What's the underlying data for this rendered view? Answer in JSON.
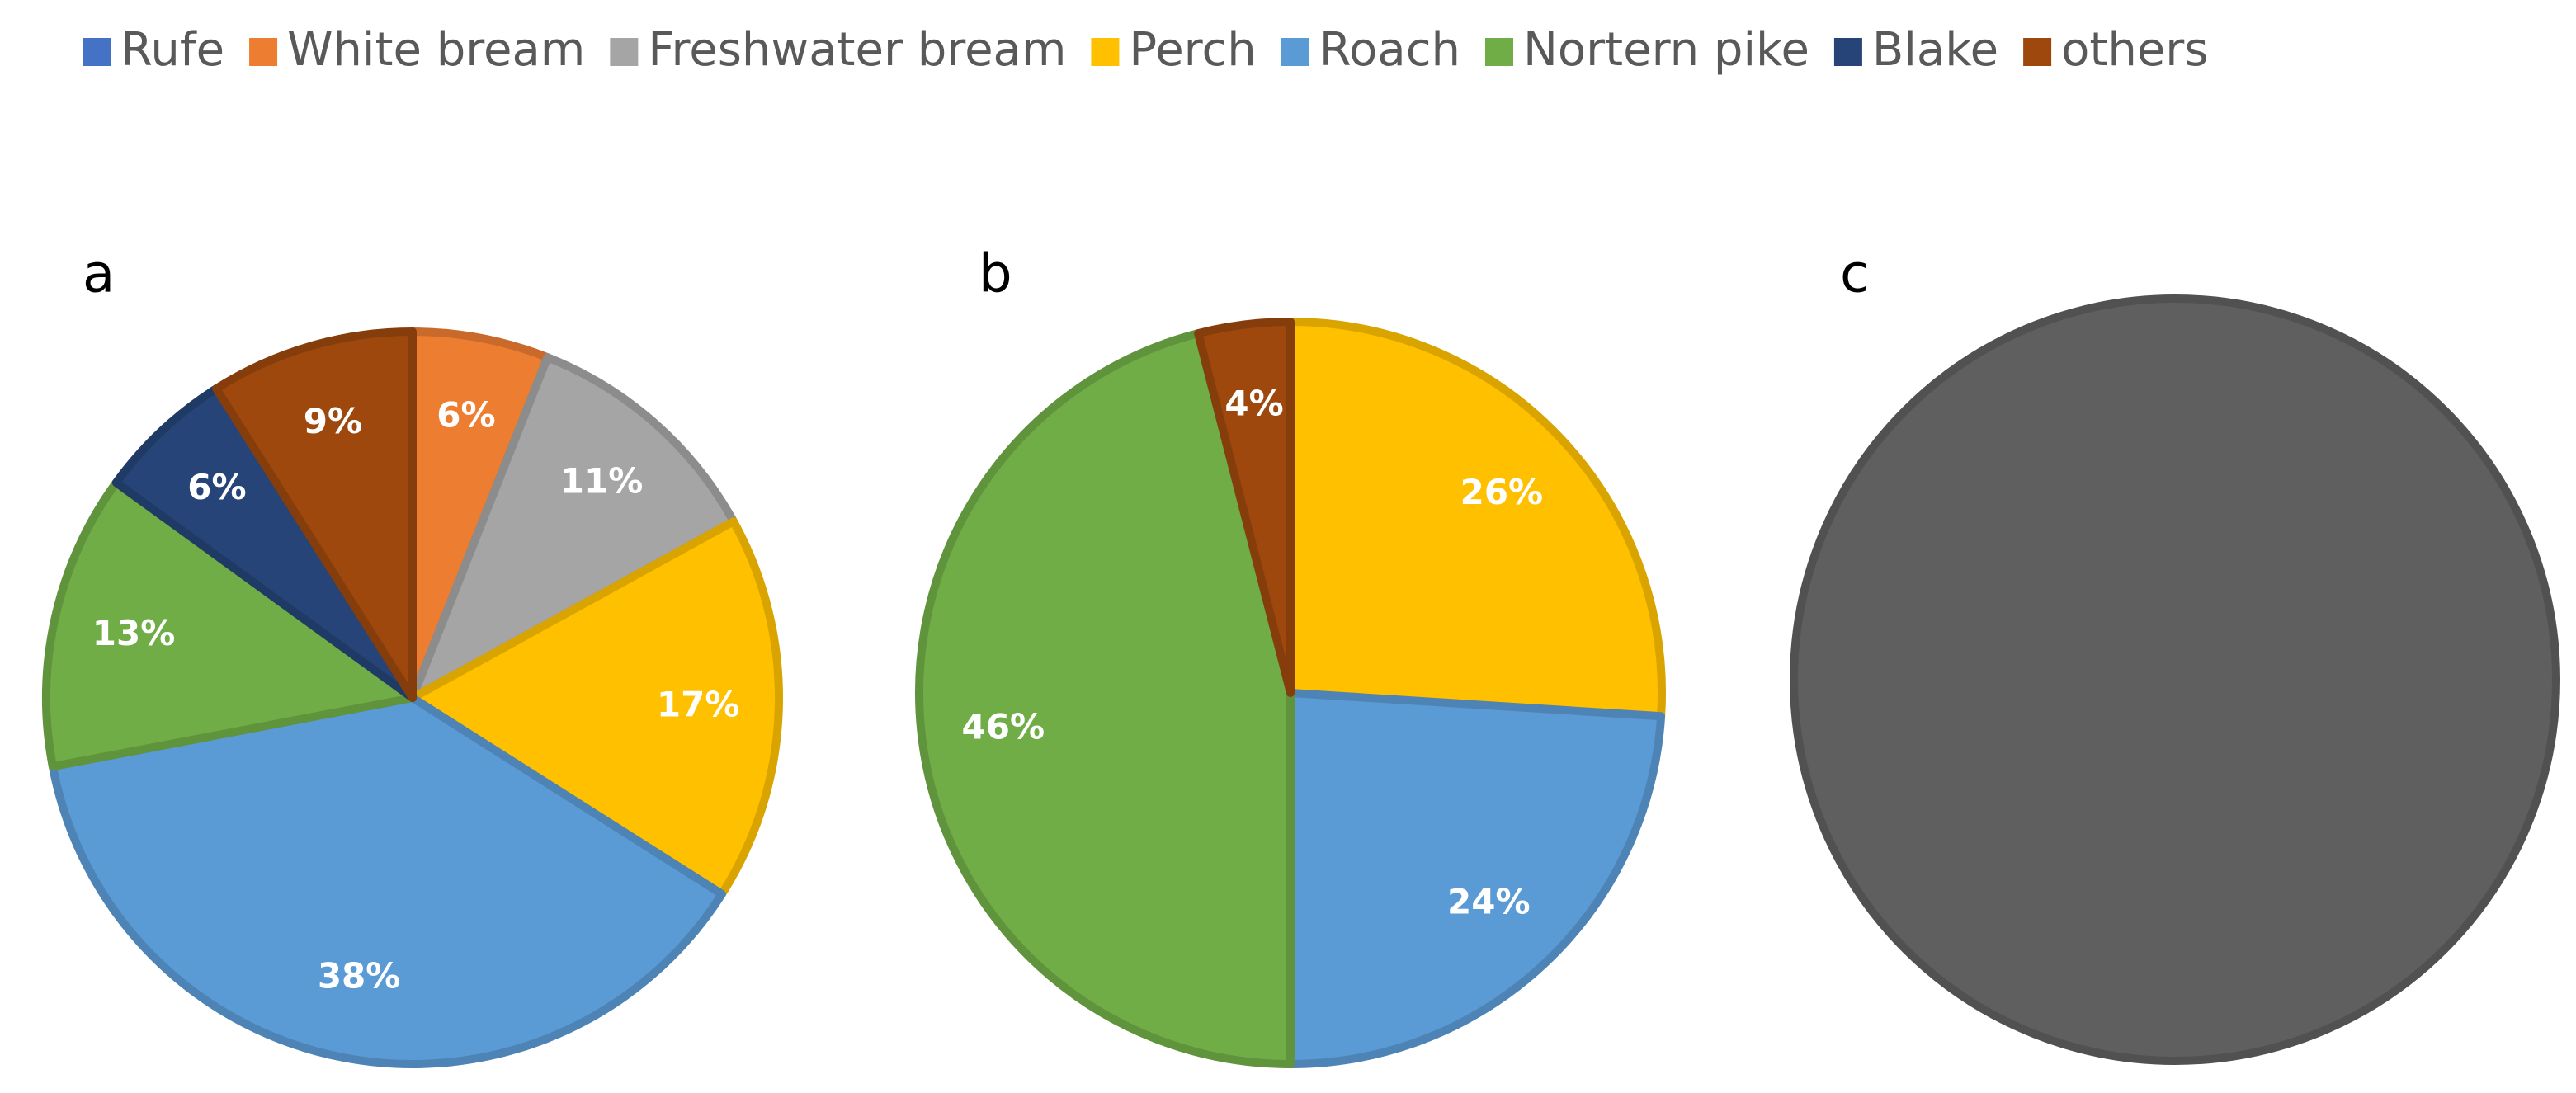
{
  "chart_data": [
    {
      "type": "pie",
      "title": "a",
      "categories": [
        "Rufe",
        "White bream",
        "Freshwater bream",
        "Perch",
        "Roach",
        "Nortern pike",
        "Blake",
        "others"
      ],
      "values": [
        0,
        6,
        11,
        17,
        38,
        13,
        6,
        9
      ],
      "value_labels": [
        null,
        "6%",
        "11%",
        "17%",
        "38%",
        "13%",
        "6%",
        "9%"
      ],
      "colors": [
        "#4472c4",
        "#ed7d31",
        "#a5a5a5",
        "#ffc000",
        "#5b9bd5",
        "#70ad47",
        "#264478",
        "#9e480e"
      ],
      "legend": "top"
    },
    {
      "type": "pie",
      "title": "b",
      "categories": [
        "Perch",
        "Roach",
        "Nortern pike",
        "others"
      ],
      "values": [
        26,
        24,
        46,
        4
      ],
      "value_labels": [
        "26%",
        "24%",
        "46%",
        "4%"
      ],
      "colors": [
        "#ffc000",
        "#5b9bd5",
        "#70ad47",
        "#9e480e"
      ]
    },
    {
      "type": "pie",
      "title": "c",
      "categories": [
        null
      ],
      "values": [
        100
      ],
      "colors": [
        "#5f5f5f"
      ]
    }
  ]
}
